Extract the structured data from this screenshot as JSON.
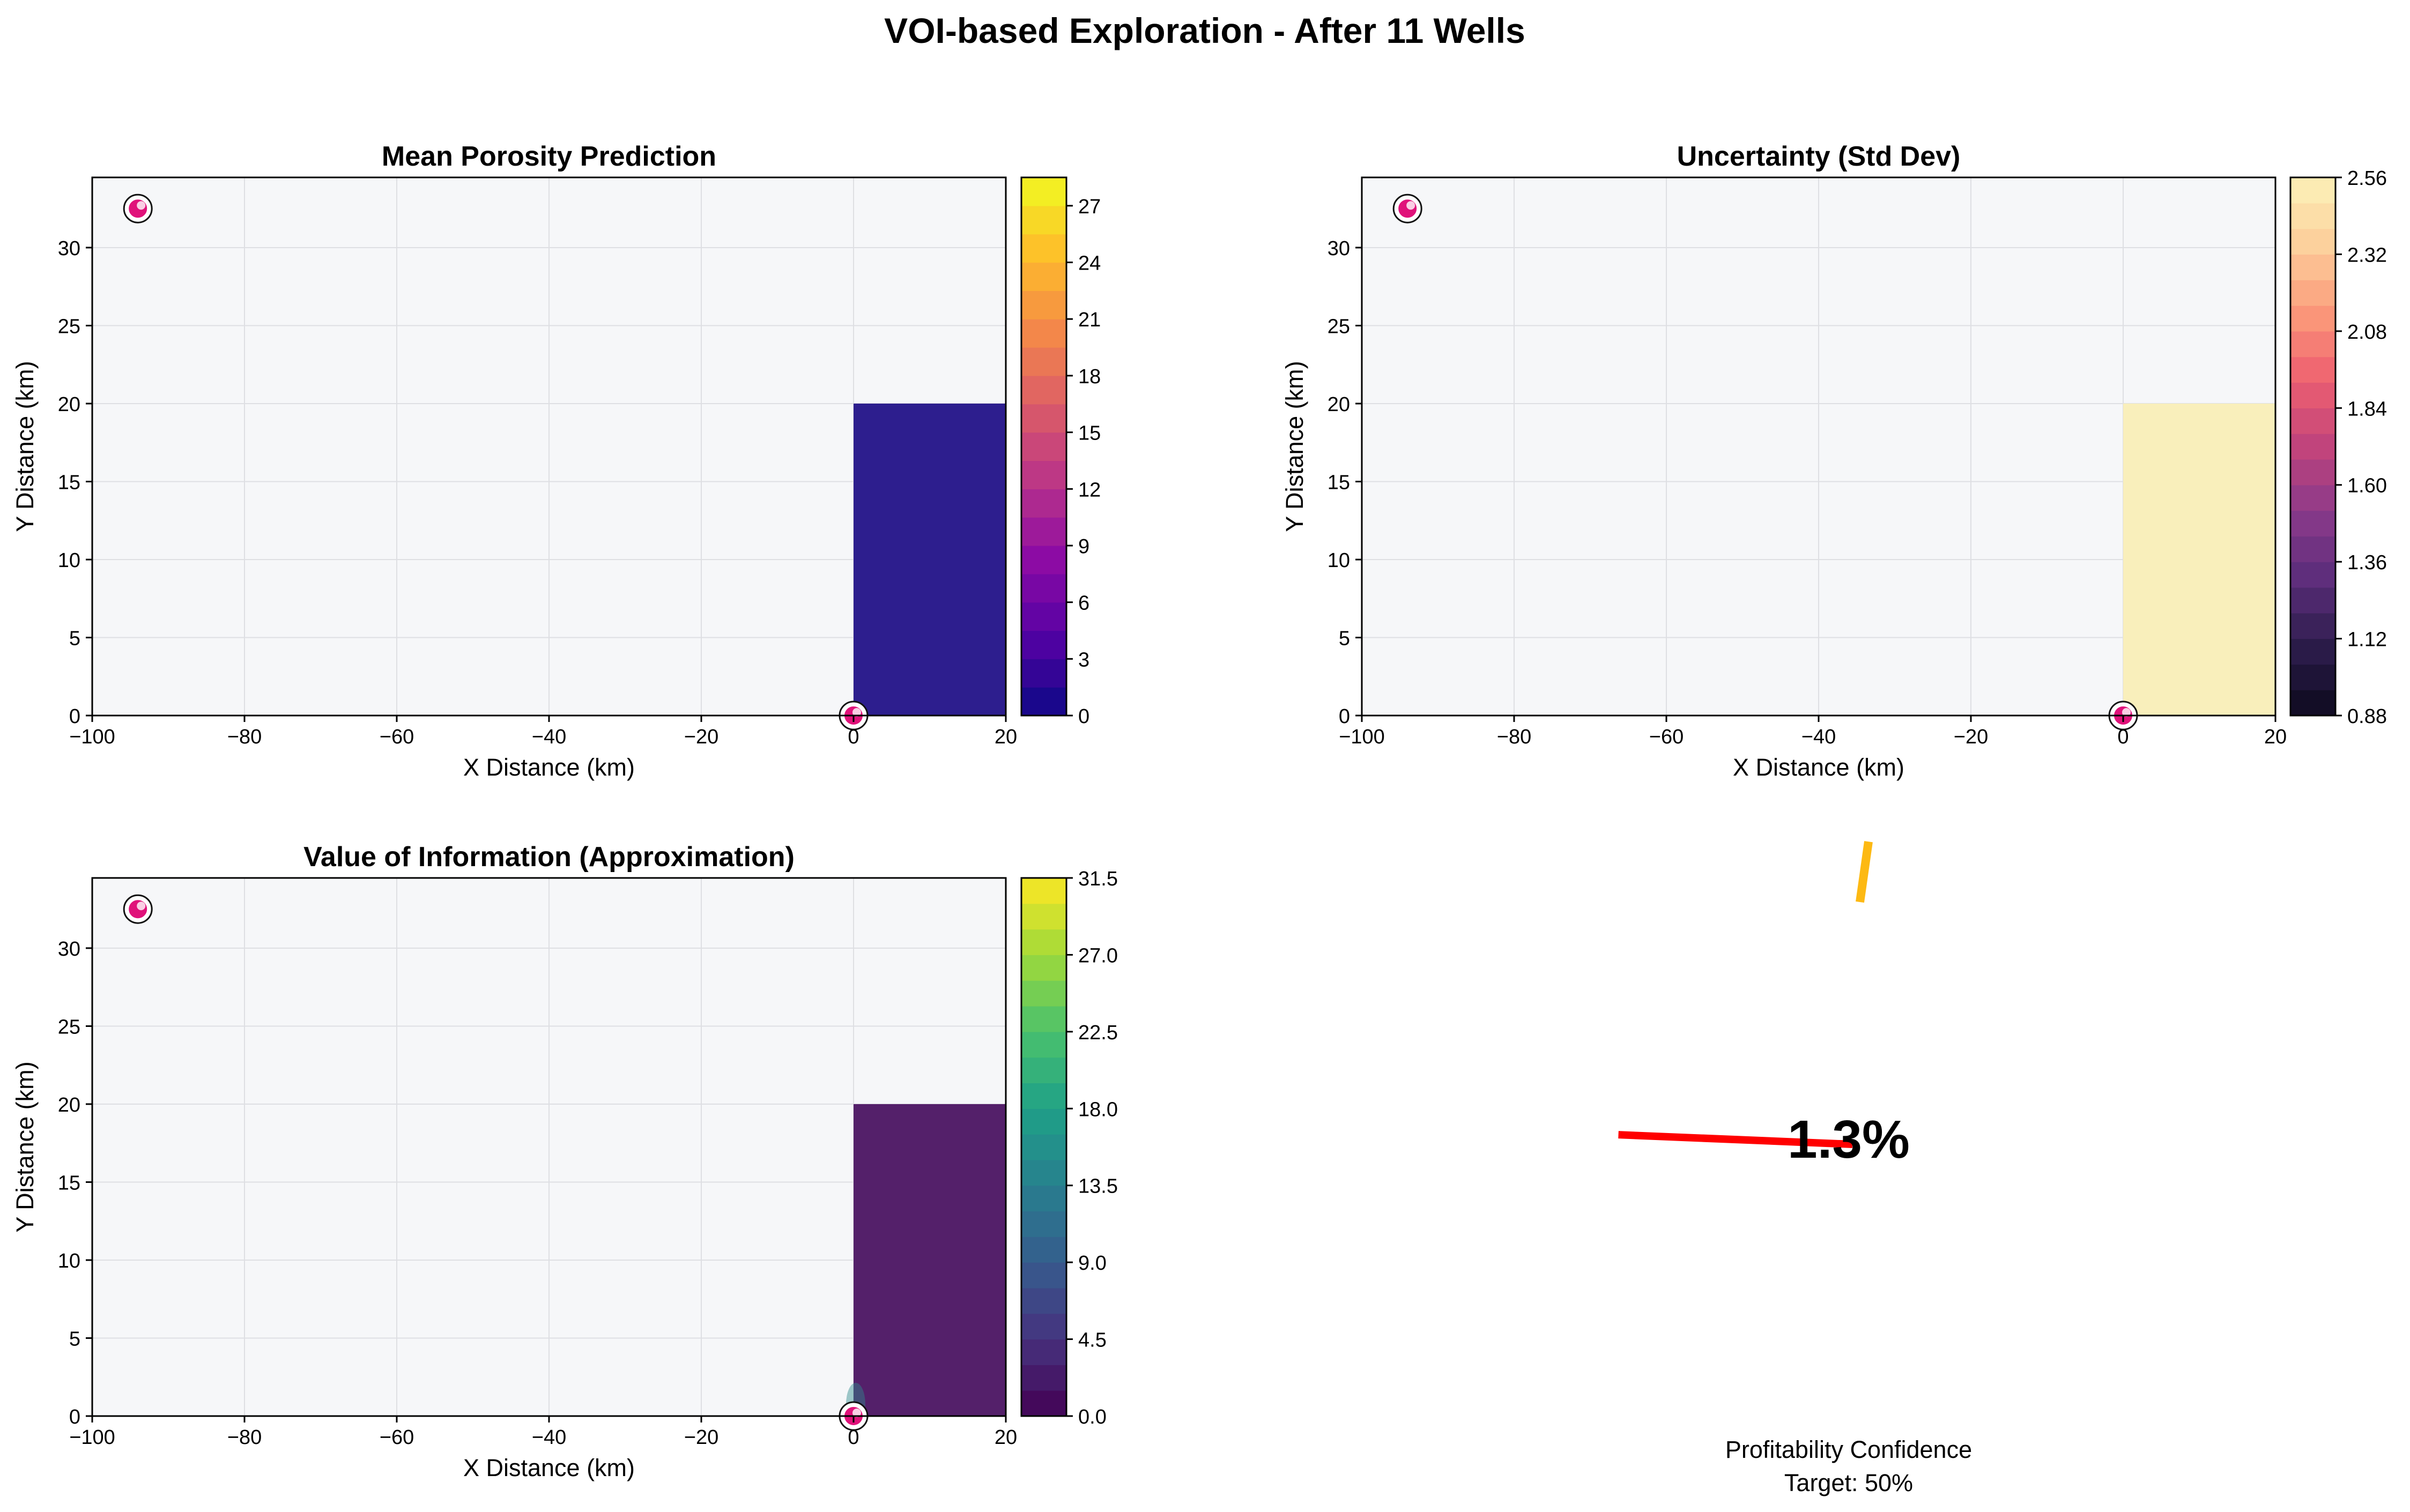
{
  "suptitle": "VOI-based Exploration - After 11 Wells",
  "chart_data": [
    {
      "type": "heatmap",
      "title": "Mean Porosity Prediction",
      "xlabel": "X Distance (km)",
      "ylabel": "Y Distance (km)",
      "xlim": [
        -100,
        20
      ],
      "ylim": [
        0,
        34.5
      ],
      "xticks": [
        -100,
        -80,
        -60,
        -40,
        -20,
        0,
        20
      ],
      "xtick_labels": [
        "−100",
        "−80",
        "−60",
        "−40",
        "−20",
        "0",
        "20"
      ],
      "yticks": [
        0,
        5,
        10,
        15,
        20,
        25,
        30
      ],
      "yticklabels": [
        "0",
        "5",
        "10",
        "15",
        "20",
        "25",
        "30"
      ],
      "grid": true,
      "colormap": "plasma",
      "colormap_stops": [
        "#0d0887",
        "#5302a3",
        "#8b0aa5",
        "#b83289",
        "#db5c68",
        "#f48849",
        "#febd2a",
        "#f0f921"
      ],
      "filled_region": {
        "x": [
          0,
          20
        ],
        "y": [
          0,
          20
        ],
        "value": 0.5,
        "color": "#2d1e8e"
      },
      "wells": [
        {
          "x": -94,
          "y": 32.5
        },
        {
          "x": 0,
          "y": 0
        }
      ],
      "colorbar": {
        "min": 0,
        "max": 28.5,
        "levels": 19,
        "ticks": [
          0,
          3,
          6,
          9,
          12,
          15,
          18,
          21,
          24,
          27
        ],
        "tick_labels": [
          "0",
          "3",
          "6",
          "9",
          "12",
          "15",
          "18",
          "21",
          "24",
          "27"
        ]
      }
    },
    {
      "type": "heatmap",
      "title": "Uncertainty (Std Dev)",
      "xlabel": "X Distance (km)",
      "ylabel": "Y Distance (km)",
      "xlim": [
        -100,
        20
      ],
      "ylim": [
        0,
        34.5
      ],
      "xticks": [
        -100,
        -80,
        -60,
        -40,
        -20,
        0,
        20
      ],
      "xtick_labels": [
        "−100",
        "−80",
        "−60",
        "−40",
        "−20",
        "0",
        "20"
      ],
      "yticks": [
        0,
        5,
        10,
        15,
        20,
        25,
        30
      ],
      "yticklabels": [
        "0",
        "5",
        "10",
        "15",
        "20",
        "25",
        "30"
      ],
      "grid": true,
      "colormap": "magma",
      "colormap_stops": [
        "#0d0a1e",
        "#2b1c4a",
        "#5a2d7a",
        "#8a3a8a",
        "#c1447c",
        "#ee5f70",
        "#fb9b7a",
        "#fccf9c",
        "#fcf1b9"
      ],
      "filled_region": {
        "x": [
          0,
          20
        ],
        "y": [
          0,
          20
        ],
        "value": 2.52,
        "color": "#f9efbb"
      },
      "wells": [
        {
          "x": -94,
          "y": 32.5
        },
        {
          "x": 0,
          "y": 0
        }
      ],
      "colorbar": {
        "min": 0.88,
        "max": 2.56,
        "levels": 21,
        "ticks": [
          0.88,
          1.12,
          1.36,
          1.6,
          1.84,
          2.08,
          2.32,
          2.56
        ],
        "tick_labels": [
          "0.88",
          "1.12",
          "1.36",
          "1.60",
          "1.84",
          "2.08",
          "2.32",
          "2.56"
        ]
      }
    },
    {
      "type": "heatmap",
      "title": "Value of Information (Approximation)",
      "xlabel": "X Distance (km)",
      "ylabel": "Y Distance (km)",
      "xlim": [
        -100,
        20
      ],
      "ylim": [
        0,
        34.5
      ],
      "xticks": [
        -100,
        -80,
        -60,
        -40,
        -20,
        0,
        20
      ],
      "xtick_labels": [
        "−100",
        "−80",
        "−60",
        "−40",
        "−20",
        "0",
        "20"
      ],
      "yticks": [
        0,
        5,
        10,
        15,
        20,
        25,
        30
      ],
      "yticklabels": [
        "0",
        "5",
        "10",
        "15",
        "20",
        "25",
        "30"
      ],
      "grid": true,
      "colormap": "viridis",
      "colormap_stops": [
        "#440154",
        "#46327e",
        "#365c8d",
        "#277f8e",
        "#1fa187",
        "#4ac16d",
        "#a0da39",
        "#fde725"
      ],
      "filled_region": {
        "x": [
          0,
          20
        ],
        "y": [
          0,
          20
        ],
        "value": 0.8,
        "color": "#54206a"
      },
      "wells": [
        {
          "x": -94,
          "y": 32.5
        },
        {
          "x": 0,
          "y": 0
        }
      ],
      "colorbar": {
        "min": 0,
        "max": 31.5,
        "levels": 21,
        "ticks": [
          0,
          4.5,
          9,
          13.5,
          18,
          22.5,
          27,
          31.5
        ],
        "tick_labels": [
          "0.0",
          "4.5",
          "9.0",
          "13.5",
          "18.0",
          "22.5",
          "27.0",
          "31.5"
        ]
      }
    },
    {
      "type": "gauge",
      "value_percent": 1.3,
      "value_label": "1.3%",
      "target_percent": 50,
      "caption_line1": "Profitability Confidence",
      "caption_line2": "Target: 50%",
      "needle_color": "#ff0000",
      "target_color": "#fdb913"
    }
  ]
}
